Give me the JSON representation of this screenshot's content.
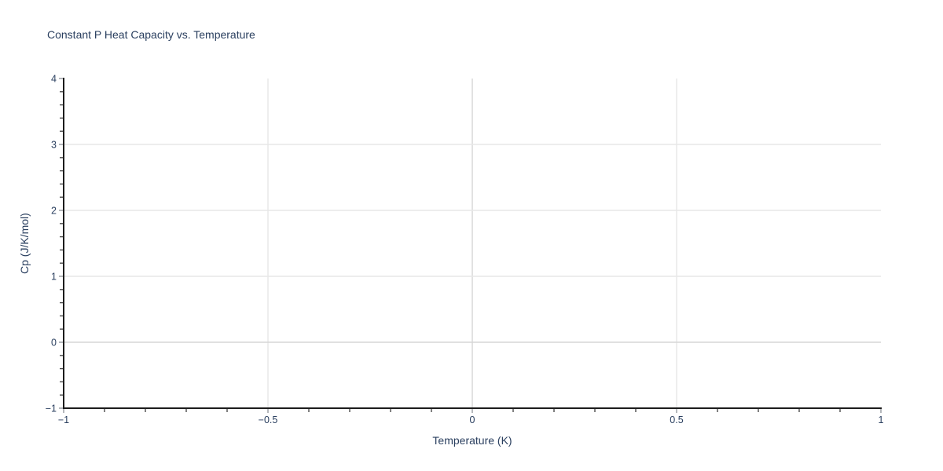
{
  "page": {
    "background": "#ffffff"
  },
  "chart": {
    "title": "Constant P Heat Capacity vs. Temperature",
    "x_axis_label": "Temperature (K)",
    "y_axis_label": "Cp (J/K/mol)"
  },
  "chart_data": {
    "type": "line",
    "title": "Constant P Heat Capacity vs. Temperature",
    "xlabel": "Temperature (K)",
    "ylabel": "Cp (J/K/mol)",
    "xlim": [
      -1,
      1
    ],
    "ylim": [
      -1,
      4
    ],
    "x_ticks": [
      -1,
      -0.5,
      0,
      0.5,
      1
    ],
    "x_tick_labels": [
      "−1",
      "−0.5",
      "0",
      "0.5",
      "1"
    ],
    "y_ticks": [
      -1,
      0,
      1,
      2,
      3,
      4
    ],
    "y_tick_labels": [
      "−1",
      "0",
      "1",
      "2",
      "3",
      "4"
    ],
    "x_minor_tick_step": 0.1,
    "y_minor_tick_step": 0.2,
    "grid": true,
    "gridlines_x": [
      -0.5,
      0,
      0.5
    ],
    "gridlines_y": [
      0,
      1,
      2,
      3
    ],
    "zeroline_x": 0,
    "zeroline_y": 0,
    "series": [],
    "legend": null,
    "colors": {
      "text": "#2a3f5f",
      "axis_line": "#1c1c1c",
      "grid": "#e7e7e7",
      "zeroline": "#d6d6d6",
      "major_tick": "#b5b8bc",
      "minor_tick": "#4d4d4d",
      "background": "#ffffff"
    }
  }
}
